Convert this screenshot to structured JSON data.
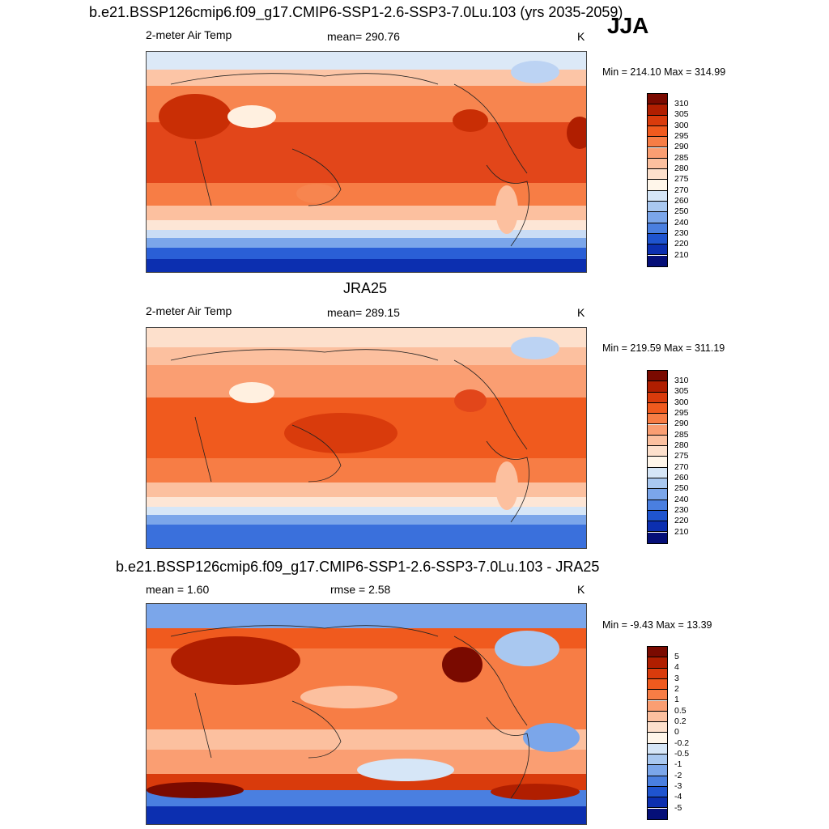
{
  "header": {
    "main_title": "b.e21.BSSP126cmip6.f09_g17.CMIP6-SSP1-2.6-SSP3-7.0Lu.103 (yrs 2035-2059)",
    "season": "JJA"
  },
  "panels": [
    {
      "title": "",
      "left_label": "2-meter Air Temp",
      "center_label": "mean= 290.76",
      "units": "K",
      "minmax": "Min = 214.10 Max = 314.99",
      "colorbar_ticks": [
        "310",
        "305",
        "300",
        "295",
        "290",
        "285",
        "280",
        "275",
        "270",
        "260",
        "250",
        "240",
        "230",
        "220",
        "210"
      ],
      "colorbar_colors": [
        "#7a0a00",
        "#b01e00",
        "#d93b0c",
        "#f05a1e",
        "#f77d45",
        "#fa9e72",
        "#fcc09f",
        "#fde0cc",
        "#fff6ea",
        "#d6e6f7",
        "#a9c8f0",
        "#7ba6ea",
        "#4a7fe0",
        "#1f54cf",
        "#0c2fb0",
        "#050f78"
      ]
    },
    {
      "title": "JRA25",
      "left_label": "2-meter Air Temp",
      "center_label": "mean= 289.15",
      "units": "K",
      "minmax": "Min = 219.59 Max = 311.19",
      "colorbar_ticks": [
        "310",
        "305",
        "300",
        "295",
        "290",
        "285",
        "280",
        "275",
        "270",
        "260",
        "250",
        "240",
        "230",
        "220",
        "210"
      ],
      "colorbar_colors": [
        "#7a0a00",
        "#b01e00",
        "#d93b0c",
        "#f05a1e",
        "#f77d45",
        "#fa9e72",
        "#fcc09f",
        "#fde0cc",
        "#fff6ea",
        "#d6e6f7",
        "#a9c8f0",
        "#7ba6ea",
        "#4a7fe0",
        "#1f54cf",
        "#0c2fb0",
        "#050f78"
      ]
    },
    {
      "title": "b.e21.BSSP126cmip6.f09_g17.CMIP6-SSP1-2.6-SSP3-7.0Lu.103 - JRA25",
      "left_label": "mean =   1.60",
      "center_label": "rmse =   2.58",
      "units": "K",
      "minmax": "Min =  -9.43 Max =  13.39",
      "colorbar_ticks": [
        "5",
        "4",
        "3",
        "2",
        "1",
        "0.5",
        "0.2",
        "0",
        "-0.2",
        "-0.5",
        "-1",
        "-2",
        "-3",
        "-4",
        "-5"
      ],
      "colorbar_colors": [
        "#7a0a00",
        "#b01e00",
        "#d93b0c",
        "#f05a1e",
        "#f77d45",
        "#fa9e72",
        "#fcc09f",
        "#fde0cc",
        "#fff6ea",
        "#d6e6f7",
        "#a9c8f0",
        "#7ba6ea",
        "#4a7fe0",
        "#1f54cf",
        "#0c2fb0",
        "#050f78"
      ]
    }
  ]
}
